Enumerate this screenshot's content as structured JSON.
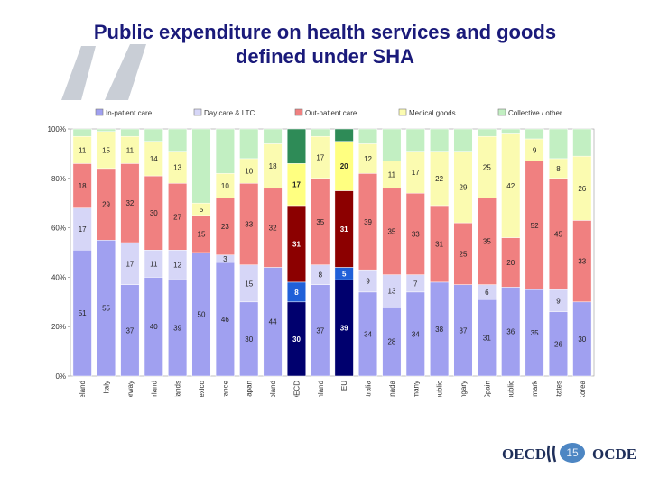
{
  "slide": {
    "title_line1": "Public expenditure on health services and goods",
    "title_line2": "defined under SHA",
    "page_number": "15",
    "logo_left": "OECD",
    "logo_right": "OCDE"
  },
  "colors": {
    "inpatient": "#a0a0f0",
    "daycare": "#d6d6f7",
    "outpatient": "#f08080",
    "medical": "#fbfbb0",
    "collective": "#c2efc2",
    "oecd_inpatient": "#00006e",
    "oecd_daycare": "#2060d8",
    "oecd_outpatient": "#8c0000",
    "oecd_medical": "#ffff80",
    "oecd_collective": "#2e8b57",
    "title": "#1a1a7a"
  },
  "chart_data": {
    "type": "bar",
    "stacked": true,
    "title": "Public expenditure on health services and goods defined under SHA",
    "y_ticks": [
      "0%",
      "20%",
      "40%",
      "60%",
      "80%",
      "100%"
    ],
    "ylim": [
      0,
      100
    ],
    "categories": [
      "Iceland",
      "Italy",
      "Norway",
      "Switzerland",
      "Netherlands",
      "Mexico",
      "France",
      "Japan",
      "Poland",
      "OECD",
      "Finland",
      "EU",
      "Australia",
      "Canada",
      "Germany",
      "Czech Republic",
      "Hungary",
      "Spain",
      "Slovak Republic",
      "Denmark",
      "United States",
      "Korea"
    ],
    "highlighted": [
      "OECD",
      "EU"
    ],
    "series": [
      {
        "name": "In-patient care",
        "key": "inpatient",
        "values": [
          51,
          55,
          37,
          40,
          39,
          50,
          46,
          30,
          44,
          30,
          37,
          39,
          34,
          28,
          34,
          38,
          37,
          31,
          36,
          35,
          26,
          30
        ],
        "labels": [
          "51",
          "55",
          "37",
          "40",
          "39",
          "50",
          "46",
          "30",
          "44",
          "30",
          "37",
          "39",
          "34",
          "28",
          "34",
          "38",
          "37",
          "31",
          "36",
          "35",
          "26",
          "30"
        ]
      },
      {
        "name": "Day care & LTC",
        "key": "daycare",
        "values": [
          17,
          0,
          17,
          11,
          12,
          0,
          3,
          15,
          0,
          8,
          8,
          5,
          9,
          13,
          7,
          0,
          0,
          6,
          0,
          0,
          9,
          0
        ],
        "labels": [
          "17",
          "",
          "17",
          "11",
          "12",
          "",
          "3",
          "15",
          "",
          "8",
          "8",
          "5",
          "9",
          "13",
          "7",
          "",
          "",
          "6",
          "",
          "",
          "9",
          ""
        ]
      },
      {
        "name": "Out-patient care",
        "key": "outpatient",
        "values": [
          18,
          29,
          32,
          30,
          27,
          15,
          23,
          33,
          32,
          31,
          35,
          31,
          39,
          35,
          33,
          31,
          25,
          35,
          20,
          52,
          45,
          33
        ],
        "labels": [
          "18",
          "29",
          "32",
          "30",
          "27",
          "15",
          "23",
          "33",
          "32",
          "31",
          "35",
          "31",
          "39",
          "35",
          "33",
          "31",
          "25",
          "35",
          "20",
          "52",
          "45",
          "33"
        ]
      },
      {
        "name": "Medical goods",
        "key": "medical",
        "values": [
          11,
          15,
          11,
          14,
          13,
          5,
          10,
          10,
          18,
          17,
          17,
          20,
          12,
          11,
          17,
          22,
          29,
          25,
          42,
          9,
          8,
          26
        ],
        "labels": [
          "11",
          "15",
          "11",
          "14",
          "13",
          "5",
          "10",
          "10",
          "18",
          "17",
          "17",
          "20",
          "12",
          "11",
          "17",
          "22",
          "29",
          "25",
          "42",
          "9",
          "8",
          "26"
        ]
      },
      {
        "name": "Collective / other",
        "key": "collective",
        "values": [
          3,
          1,
          3,
          5,
          9,
          30,
          18,
          12,
          6,
          14,
          3,
          5,
          6,
          13,
          9,
          9,
          9,
          3,
          2,
          4,
          12,
          11
        ],
        "labels": [
          "",
          "",
          "",
          "",
          "",
          "",
          "",
          "",
          "",
          "",
          "",
          "",
          "",
          "",
          "",
          "",
          "",
          "",
          "",
          "",
          "",
          ""
        ]
      }
    ],
    "legend_position": "top"
  }
}
